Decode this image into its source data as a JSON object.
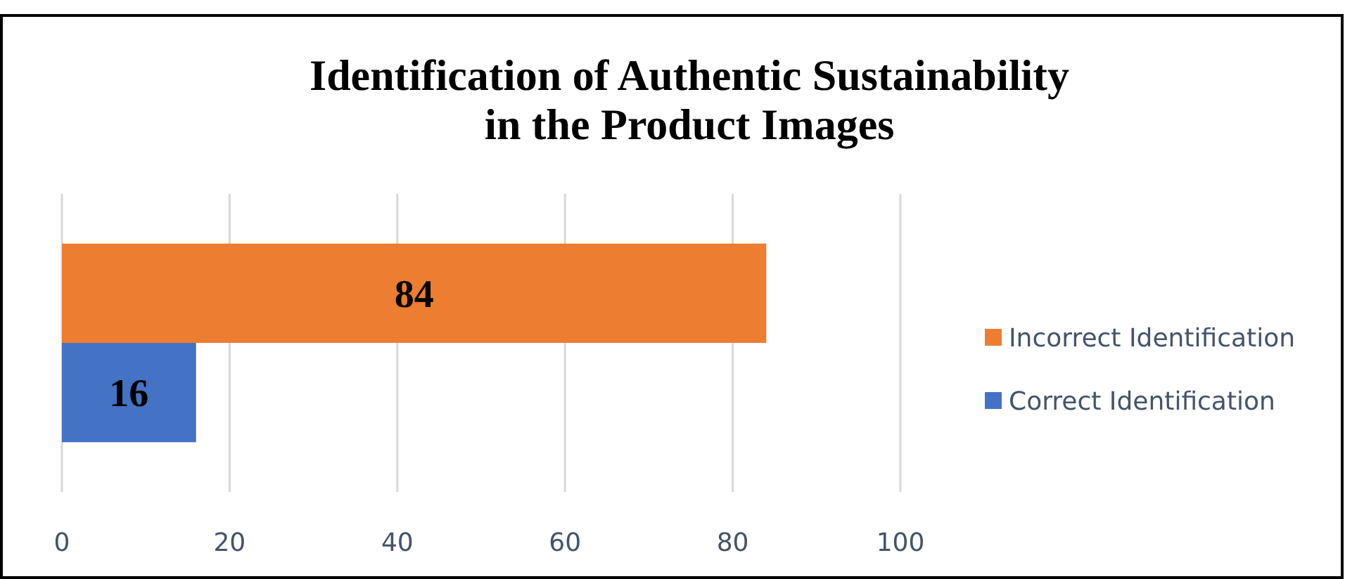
{
  "chart_data": {
    "type": "bar",
    "orientation": "horizontal",
    "title": "Identification of Authentic Sustainability\nin the Product Images",
    "categories": [
      null
    ],
    "series": [
      {
        "name": "Incorrect Identification",
        "color": "#ed7d31",
        "values": [
          84
        ]
      },
      {
        "name": "Correct Identification",
        "color": "#4472c4",
        "values": [
          16
        ]
      }
    ],
    "xlim": [
      0,
      100
    ],
    "xticks": [
      0,
      20,
      40,
      60,
      80,
      100
    ],
    "grid": "x",
    "legend": "right",
    "data_labels": true
  }
}
